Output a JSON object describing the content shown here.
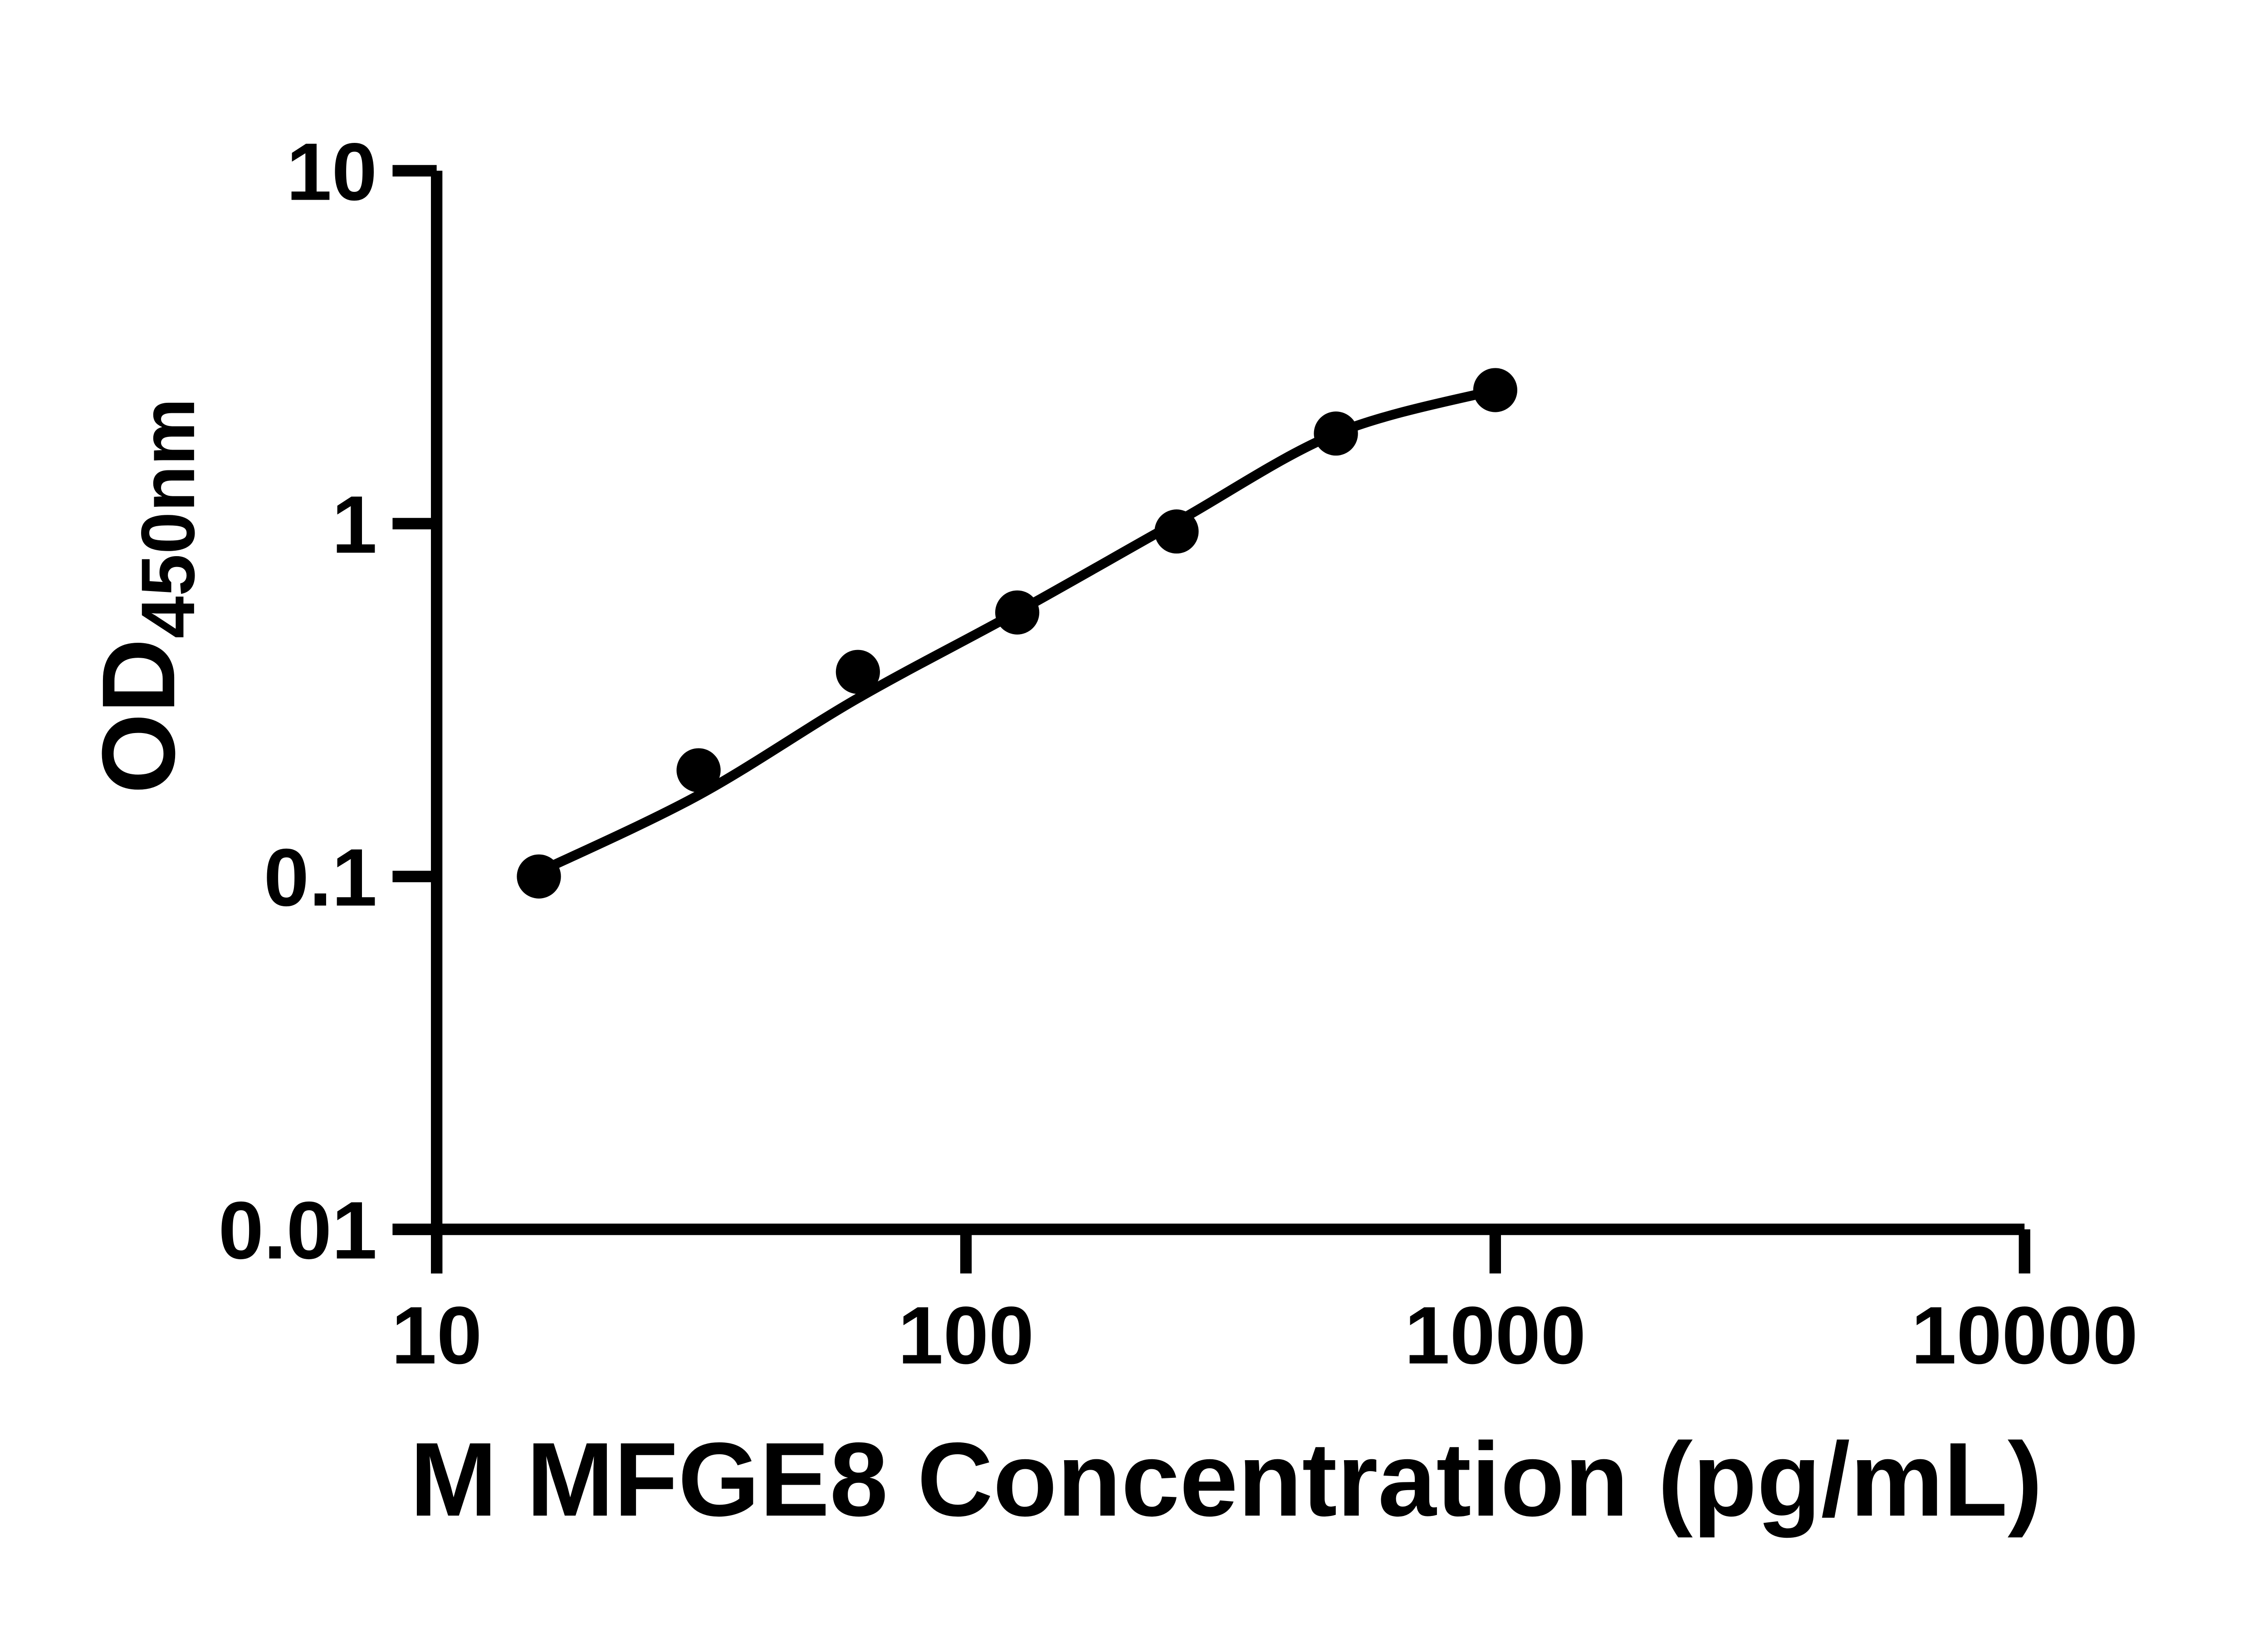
{
  "figure": {
    "background_color": "#ffffff",
    "ink_color": "#000000"
  },
  "chart_data": {
    "type": "scatter",
    "title": "",
    "xlabel": "M MFGE8 Concentration (pg/mL)",
    "ylabel_main": "OD",
    "ylabel_sub": "450nm",
    "x_scale": "log10",
    "y_scale": "log10",
    "xlim": [
      10,
      10000
    ],
    "ylim": [
      0.01,
      10
    ],
    "x_tick_labels": [
      "10",
      "100",
      "1000",
      "10000"
    ],
    "x_tick_values": [
      10,
      100,
      1000,
      10000
    ],
    "y_tick_labels": [
      "10",
      "1",
      "0.1",
      "0.01"
    ],
    "y_tick_values": [
      10,
      1,
      0.1,
      0.01
    ],
    "grid": "off",
    "legend": "none",
    "marker_color": "#000000",
    "line_color": "#000000",
    "points": [
      {
        "conc": 15.6,
        "od": 0.1
      },
      {
        "conc": 31.25,
        "od": 0.2
      },
      {
        "conc": 62.5,
        "od": 0.38
      },
      {
        "conc": 125,
        "od": 0.56
      },
      {
        "conc": 250,
        "od": 0.95
      },
      {
        "conc": 500,
        "od": 1.8
      },
      {
        "conc": 1000,
        "od": 2.39
      }
    ],
    "fit_curve": [
      {
        "conc": 15.6,
        "od": 0.103
      },
      {
        "conc": 31.25,
        "od": 0.17
      },
      {
        "conc": 62.5,
        "od": 0.32
      },
      {
        "conc": 125,
        "od": 0.562
      },
      {
        "conc": 250,
        "od": 1.01
      },
      {
        "conc": 500,
        "od": 1.8
      },
      {
        "conc": 1000,
        "od": 2.39
      }
    ]
  }
}
